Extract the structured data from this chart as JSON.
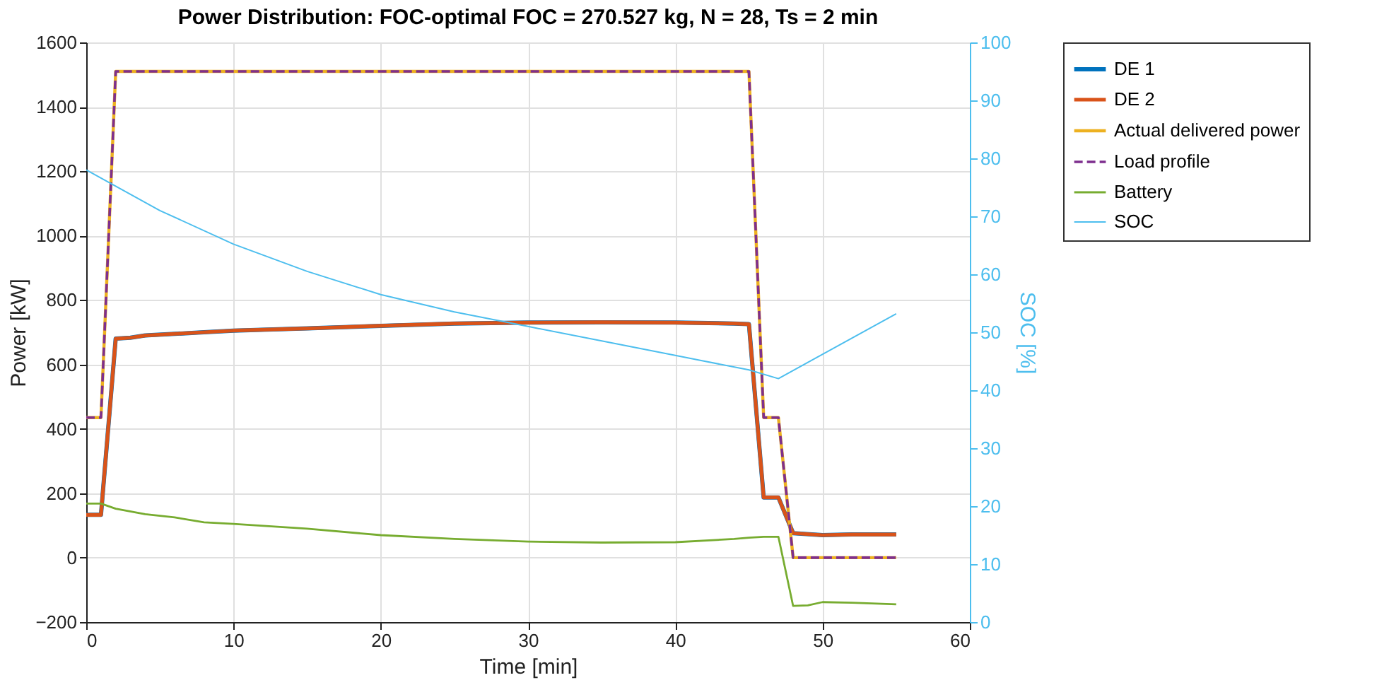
{
  "chart_data": {
    "type": "line",
    "title": "Power Distribution: FOC-optimal FOC = 270.527 kg, N = 28, Ts = 2 min",
    "xlabel": "Time [min]",
    "ylabel": "Power [kW]",
    "y2label": "SOC [%]",
    "xlim": [
      0,
      60
    ],
    "xticks": [
      0,
      10,
      20,
      30,
      40,
      50,
      60
    ],
    "ylim": [
      -200,
      1600
    ],
    "yticks": [
      -200,
      0,
      200,
      400,
      600,
      800,
      1000,
      1200,
      1400,
      1600
    ],
    "y2lim": [
      0,
      100
    ],
    "y2ticks": [
      0,
      10,
      20,
      30,
      40,
      50,
      60,
      70,
      80,
      90,
      100
    ],
    "grid": true,
    "legend": "right",
    "line_style": "solid",
    "series": [
      {
        "name": "DE 1",
        "color": "#0072bd",
        "x": [
          0,
          1,
          2,
          3,
          4,
          6,
          8,
          10,
          15,
          20,
          25,
          30,
          35,
          40,
          44,
          45,
          46,
          47,
          48,
          50,
          52,
          55
        ],
        "values": [
          133,
          133,
          680,
          683,
          690,
          695,
          700,
          705,
          712,
          720,
          727,
          730,
          731,
          730,
          727,
          725,
          187,
          187,
          76,
          70,
          72,
          72
        ]
      },
      {
        "name": "DE 2",
        "color": "#d95319",
        "x": [
          0,
          1,
          2,
          3,
          4,
          6,
          8,
          10,
          15,
          20,
          25,
          30,
          35,
          40,
          44,
          45,
          46,
          47,
          48,
          50,
          52,
          55
        ],
        "values": [
          133,
          133,
          680,
          683,
          690,
          695,
          700,
          705,
          712,
          720,
          727,
          730,
          731,
          730,
          727,
          725,
          187,
          187,
          76,
          70,
          72,
          72
        ]
      },
      {
        "name": "Actual delivered power",
        "color": "#edb120",
        "x": [
          0,
          1,
          2,
          45,
          46,
          47,
          48,
          55
        ],
        "values": [
          435,
          435,
          1510,
          1510,
          435,
          435,
          0,
          0
        ]
      },
      {
        "name": "Load profile",
        "color": "#7e2f8e",
        "line_style": "dashed",
        "x": [
          0,
          1,
          2,
          45,
          46,
          47,
          48,
          55
        ],
        "values": [
          435,
          435,
          1510,
          1510,
          435,
          435,
          0,
          0
        ]
      },
      {
        "name": "Battery",
        "color": "#77ac30",
        "x": [
          0,
          1,
          2,
          4,
          6,
          8,
          10,
          15,
          20,
          25,
          30,
          35,
          40,
          44,
          45,
          46,
          47,
          48,
          49,
          50,
          52,
          55
        ],
        "values": [
          168,
          168,
          152,
          135,
          125,
          110,
          105,
          90,
          70,
          58,
          50,
          47,
          48,
          58,
          62,
          65,
          65,
          -150,
          -148,
          -138,
          -140,
          -145
        ]
      },
      {
        "name": "SOC",
        "color": "#4dbeee",
        "axis": "y2",
        "x": [
          0,
          5,
          10,
          15,
          20,
          25,
          30,
          35,
          40,
          45,
          47,
          55
        ],
        "values": [
          78,
          71,
          65.2,
          60.5,
          56.5,
          53.5,
          51,
          48.5,
          46,
          43.5,
          42,
          53.2
        ]
      }
    ]
  }
}
